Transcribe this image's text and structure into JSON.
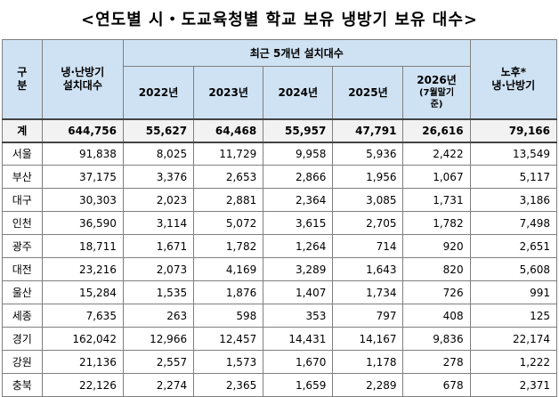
{
  "title": "<연도별 시・도교육청별 학교 보유 냉방기 보유 대수>",
  "header": {
    "gubun": "구\n분",
    "total_units": "냉·난방기\n설치대수",
    "recent_group": "최근 5개년 설치대수",
    "years": [
      "2022년",
      "2023년",
      "2024년",
      "2025년"
    ],
    "year_2026": "2026년",
    "year_2026_note": "(7월말기\n준)",
    "old_units": "노후*\n냉·난방기"
  },
  "rows": [
    {
      "region": "계",
      "total": "644,756",
      "y2022": "55,627",
      "y2023": "64,468",
      "y2024": "55,957",
      "y2025": "47,791",
      "y2026": "26,616",
      "old": "79,166"
    },
    {
      "region": "서울",
      "total": "91,838",
      "y2022": "8,025",
      "y2023": "11,729",
      "y2024": "9,958",
      "y2025": "5,936",
      "y2026": "2,422",
      "old": "13,549"
    },
    {
      "region": "부산",
      "total": "37,175",
      "y2022": "3,376",
      "y2023": "2,653",
      "y2024": "2,866",
      "y2025": "1,956",
      "y2026": "1,067",
      "old": "5,117"
    },
    {
      "region": "대구",
      "total": "30,303",
      "y2022": "2,023",
      "y2023": "2,881",
      "y2024": "2,364",
      "y2025": "3,085",
      "y2026": "1,731",
      "old": "3,186"
    },
    {
      "region": "인천",
      "total": "36,590",
      "y2022": "3,114",
      "y2023": "5,072",
      "y2024": "3,615",
      "y2025": "2,705",
      "y2026": "1,782",
      "old": "7,498"
    },
    {
      "region": "광주",
      "total": "18,711",
      "y2022": "1,671",
      "y2023": "1,782",
      "y2024": "1,264",
      "y2025": "714",
      "y2026": "920",
      "old": "2,651"
    },
    {
      "region": "대전",
      "total": "23,216",
      "y2022": "2,073",
      "y2023": "4,169",
      "y2024": "3,289",
      "y2025": "1,643",
      "y2026": "820",
      "old": "5,608"
    },
    {
      "region": "울산",
      "total": "15,284",
      "y2022": "1,535",
      "y2023": "1,876",
      "y2024": "1,407",
      "y2025": "1,734",
      "y2026": "726",
      "old": "991"
    },
    {
      "region": "세종",
      "total": "7,635",
      "y2022": "263",
      "y2023": "598",
      "y2024": "353",
      "y2025": "797",
      "y2026": "408",
      "old": "125"
    },
    {
      "region": "경기",
      "total": "162,042",
      "y2022": "12,966",
      "y2023": "12,457",
      "y2024": "14,431",
      "y2025": "14,167",
      "y2026": "9,836",
      "old": "22,174"
    },
    {
      "region": "강원",
      "total": "21,136",
      "y2022": "2,557",
      "y2023": "1,573",
      "y2024": "1,670",
      "y2025": "1,178",
      "y2026": "278",
      "old": "1,222"
    },
    {
      "region": "충북",
      "total": "22,126",
      "y2022": "2,274",
      "y2023": "2,365",
      "y2024": "1,659",
      "y2025": "2,289",
      "y2026": "678",
      "old": "2,371"
    }
  ]
}
